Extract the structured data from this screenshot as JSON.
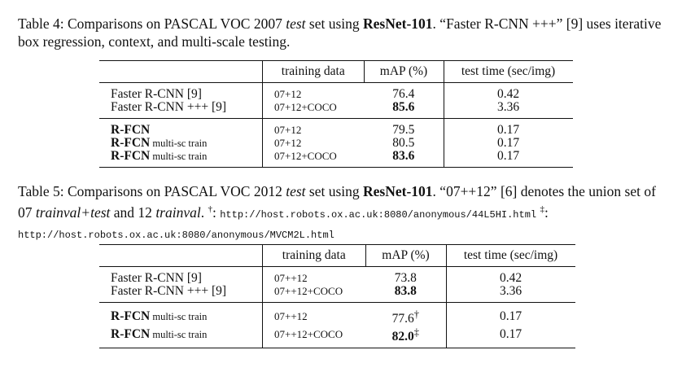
{
  "table4": {
    "caption": {
      "label": "Table 4:",
      "t1": " Comparisons on PASCAL VOC 2007 ",
      "t2": "test",
      "t3": " set using ",
      "t4": "ResNet-101",
      "t5": ". “Faster R-CNN +++” [9] uses iterative box regression, context, and multi-scale testing."
    },
    "headers": [
      "training data",
      "mAP (%)",
      "test time (sec/img)"
    ],
    "rows": [
      {
        "method": "Faster R-CNN [9]",
        "suffix": "",
        "data": "07+12",
        "map": "76.4",
        "time": "0.42"
      },
      {
        "method": "Faster R-CNN +++ [9]",
        "suffix": "",
        "data": "07+12+COCO",
        "map": "85.6",
        "time": "3.36"
      },
      {
        "method": "R-FCN",
        "suffix": "",
        "data": "07+12",
        "map": "79.5",
        "time": "0.17"
      },
      {
        "method": "R-FCN",
        "suffix": " multi-sc train",
        "data": "07+12",
        "map": "80.5",
        "time": "0.17"
      },
      {
        "method": "R-FCN",
        "suffix": " multi-sc train",
        "data": "07+12+COCO",
        "map": "83.6",
        "time": "0.17"
      }
    ]
  },
  "table5": {
    "caption": {
      "label": "Table 5:",
      "t1": " Comparisons on PASCAL VOC 2012 ",
      "t2": "test",
      "t3": " set using ",
      "t4": "ResNet-101",
      "t5": ". “07++12” [6] denotes the union set of 07 ",
      "t6": "trainval+test",
      "t7": " and 12 ",
      "t8": "trainval",
      "t9": ". ",
      "dagger": "†",
      "t10": ": ",
      "url1": "http://host.robots.ox.ac.uk:8080/anonymous/44L5HI.html",
      "ddagger": "‡",
      "t11": ":",
      "url2": "http://host.robots.ox.ac.uk:8080/anonymous/MVCM2L.html"
    },
    "headers": [
      "training data",
      "mAP (%)",
      "test time (sec/img)"
    ],
    "rows": [
      {
        "method": "Faster R-CNN [9]",
        "suffix": "",
        "data": "07++12",
        "map": "73.8",
        "mark": "",
        "time": "0.42"
      },
      {
        "method": "Faster R-CNN +++ [9]",
        "suffix": "",
        "data": "07++12+COCO",
        "map": "83.8",
        "mark": "",
        "time": "3.36"
      },
      {
        "method": "R-FCN",
        "suffix": " multi-sc train",
        "data": "07++12",
        "map": "77.6",
        "mark": "†",
        "time": "0.17"
      },
      {
        "method": "R-FCN",
        "suffix": " multi-sc train",
        "data": "07++12+COCO",
        "map": "82.0",
        "mark": "‡",
        "time": "0.17"
      }
    ]
  }
}
